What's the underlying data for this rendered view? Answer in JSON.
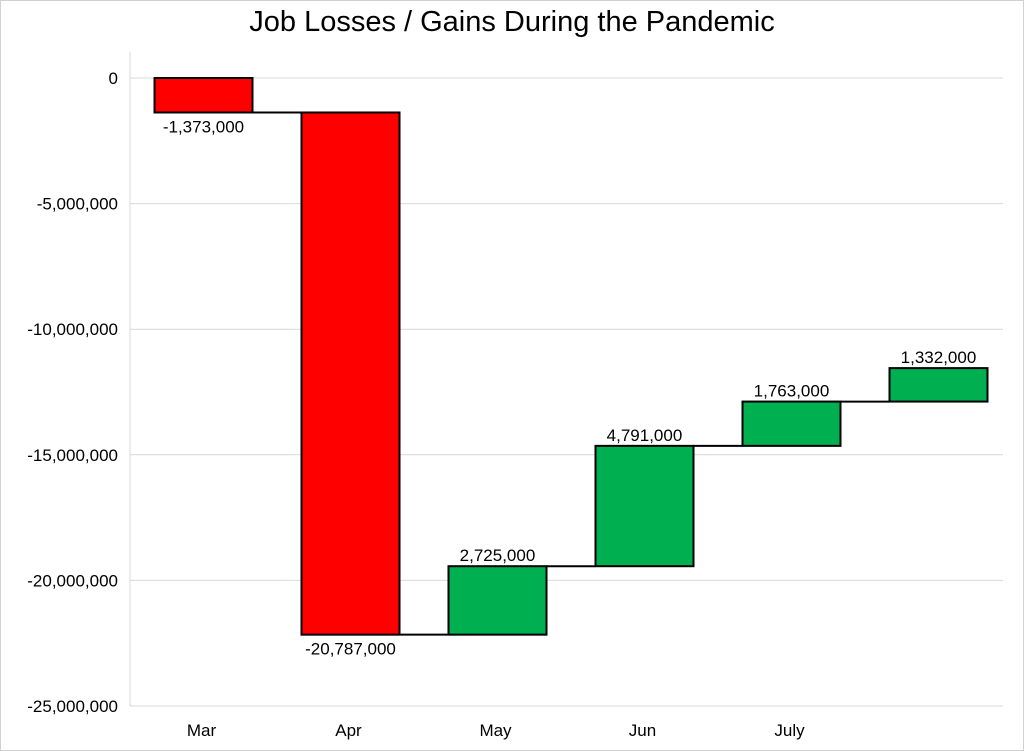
{
  "chart_data": {
    "type": "waterfall",
    "title": "Job Losses / Gains During the Pandemic",
    "xlabel": "",
    "ylabel": "",
    "categories": [
      "Mar",
      "Apr",
      "May",
      "Jun",
      "July",
      ""
    ],
    "values": [
      -1373000,
      -20787000,
      2725000,
      4791000,
      1763000,
      1332000
    ],
    "value_labels": [
      "-1,373,000",
      "-20,787,000",
      "2,725,000",
      "4,791,000",
      "1,763,000",
      "1,332,000"
    ],
    "ylim": [
      -25000000,
      0
    ],
    "yticks": [
      0,
      -5000000,
      -10000000,
      -15000000,
      -20000000,
      -25000000
    ],
    "ytick_labels": [
      "0",
      "-5,000,000",
      "-10,000,000",
      "-15,000,000",
      "-20,000,000",
      "-25,000,000"
    ],
    "grid": true,
    "colors": {
      "decrease": "#ff0000",
      "increase": "#00b050",
      "edge": "#000000",
      "grid": "#d9d9d9"
    }
  }
}
